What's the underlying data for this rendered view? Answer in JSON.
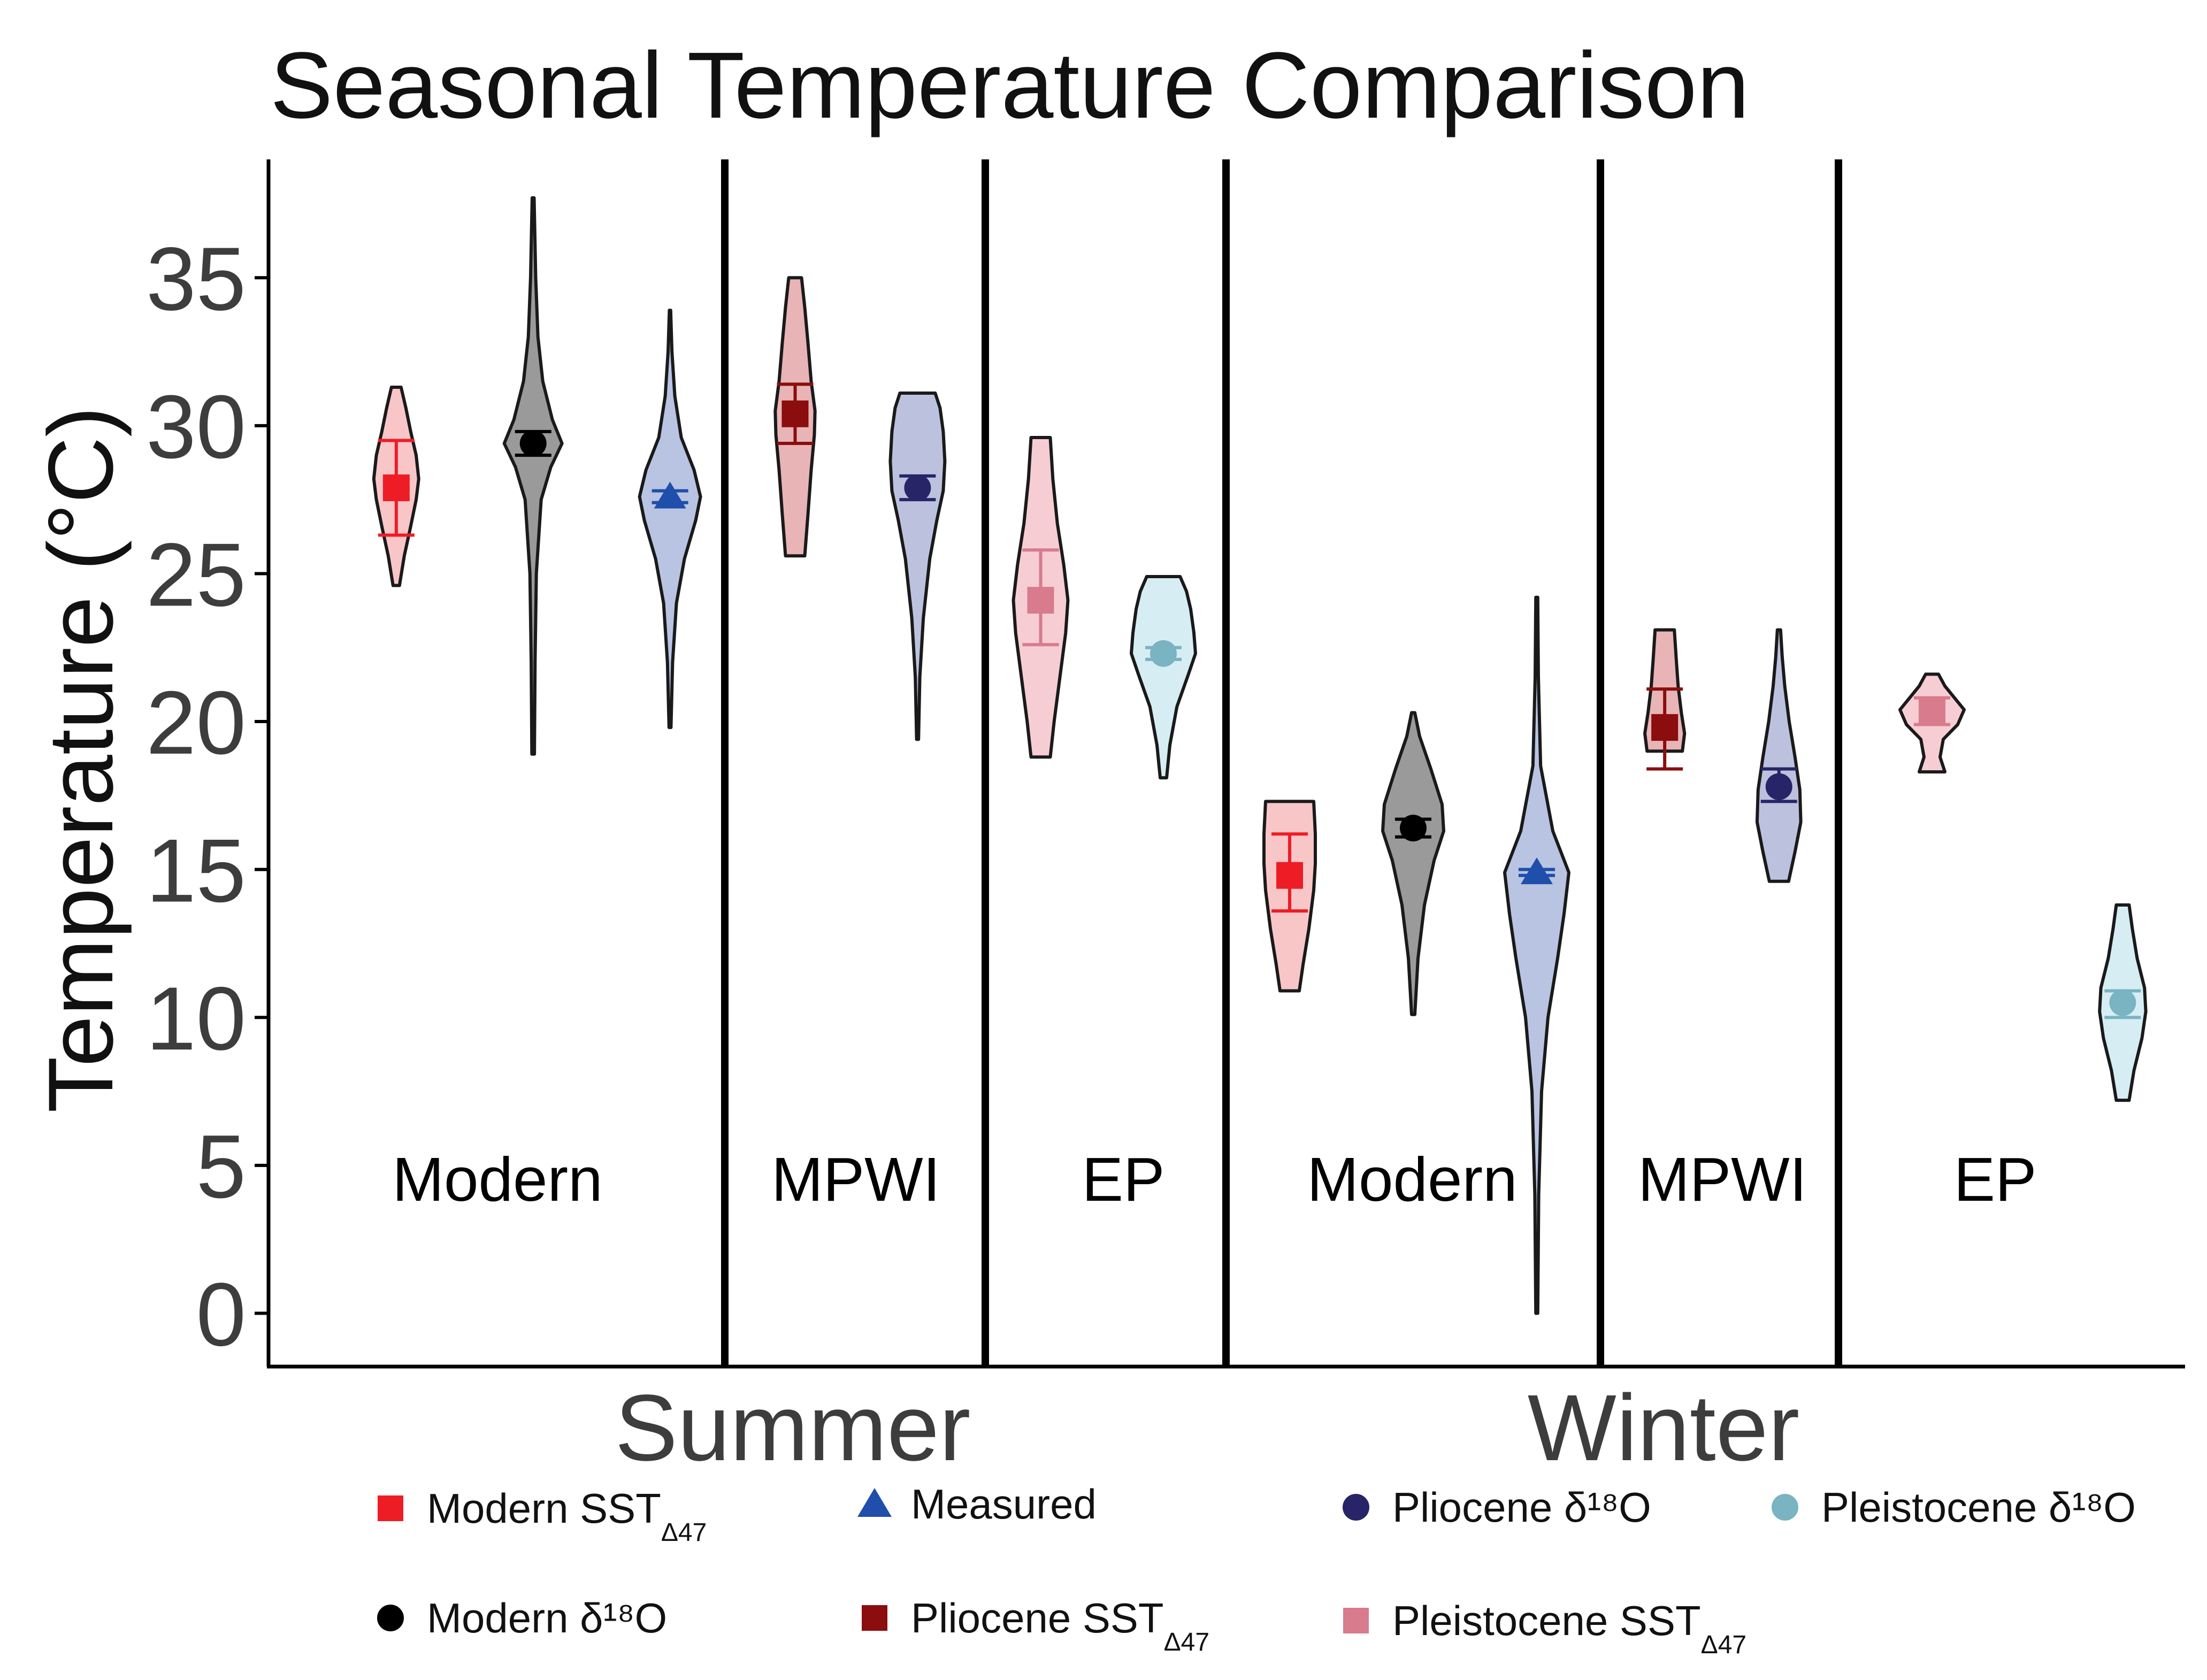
{
  "chart_data": {
    "type": "violin",
    "title": "Seasonal Temperature Comparison",
    "ylabel": "Temperature (°C)",
    "xlabel": "",
    "ylim": [
      -1.8,
      39
    ],
    "yticks": [
      0,
      5,
      10,
      15,
      20,
      25,
      30,
      35
    ],
    "grid": false,
    "legend_position": "bottom",
    "seasons": [
      {
        "name": "Summer",
        "groups": [
          "Modern",
          "MPWI",
          "EP"
        ]
      },
      {
        "name": "Winter",
        "groups": [
          "Modern",
          "MPWI",
          "EP"
        ]
      }
    ],
    "groups": [
      {
        "label": "Modern",
        "season": "Summer"
      },
      {
        "label": "MPWI",
        "season": "Summer"
      },
      {
        "label": "EP",
        "season": "Summer"
      },
      {
        "label": "Modern",
        "season": "Winter"
      },
      {
        "label": "MPWI",
        "season": "Winter"
      },
      {
        "label": "EP",
        "season": "Winter"
      }
    ],
    "series": [
      {
        "key": "modern_sst",
        "name": "Modern SST",
        "subscript": "Δ47",
        "marker": "square",
        "color": "#ee1c25",
        "fill": "#f9c6c8"
      },
      {
        "key": "measured",
        "name": "Measured",
        "marker": "triangle",
        "color": "#1f4eab",
        "fill": "#b8c4e2"
      },
      {
        "key": "pliocene_d18o",
        "name": "Pliocene δ¹⁸O",
        "marker": "circle",
        "color": "#272467",
        "fill": "#bcc2de"
      },
      {
        "key": "pleistocene_d18o",
        "name": "Pleistocene δ¹⁸O",
        "marker": "circle",
        "color": "#7ab3c2",
        "fill": "#d6eef3"
      },
      {
        "key": "modern_d18o",
        "name": "Modern δ¹⁸O",
        "marker": "circle",
        "color": "#000000",
        "fill": "#9a9a9a"
      },
      {
        "key": "pliocene_sst",
        "name": "Pliocene SST",
        "subscript": "Δ47",
        "marker": "square",
        "color": "#8b0d0d",
        "fill": "#e8b4b6"
      },
      {
        "key": "pleistocene_sst",
        "name": "Pleistocene SST",
        "subscript": "Δ47",
        "marker": "square",
        "color": "#d77b8d",
        "fill": "#f7cdd4"
      }
    ],
    "points": [
      {
        "group": 0,
        "series": "modern_sst",
        "x": 0.28,
        "min": 24.6,
        "max": 31.3,
        "mean": 27.9,
        "err_low": 26.3,
        "err_high": 29.5,
        "profile": [
          [
            24.6,
            0.1
          ],
          [
            25.6,
            0.25
          ],
          [
            26.6,
            0.45
          ],
          [
            27.5,
            0.62
          ],
          [
            28.2,
            0.7
          ],
          [
            29.0,
            0.62
          ],
          [
            29.8,
            0.45
          ],
          [
            30.6,
            0.3
          ],
          [
            31.3,
            0.15
          ]
        ]
      },
      {
        "group": 0,
        "series": "modern_d18o",
        "x": 0.58,
        "min": 18.9,
        "max": 37.7,
        "mean": 29.4,
        "err_low": 29.0,
        "err_high": 29.8,
        "profile": [
          [
            18.9,
            0.04
          ],
          [
            22.0,
            0.06
          ],
          [
            25.0,
            0.1
          ],
          [
            27.5,
            0.25
          ],
          [
            28.6,
            0.55
          ],
          [
            29.4,
            0.9
          ],
          [
            30.2,
            0.6
          ],
          [
            31.5,
            0.3
          ],
          [
            33.0,
            0.15
          ],
          [
            35.0,
            0.08
          ],
          [
            37.7,
            0.03
          ]
        ]
      },
      {
        "group": 0,
        "series": "measured",
        "x": 0.88,
        "min": 19.8,
        "max": 33.9,
        "mean": 27.6,
        "err_low": 27.4,
        "err_high": 27.8,
        "profile": [
          [
            19.8,
            0.03
          ],
          [
            22.0,
            0.08
          ],
          [
            24.0,
            0.2
          ],
          [
            25.5,
            0.45
          ],
          [
            26.8,
            0.8
          ],
          [
            27.6,
            0.95
          ],
          [
            28.5,
            0.75
          ],
          [
            29.6,
            0.35
          ],
          [
            31.0,
            0.15
          ],
          [
            32.5,
            0.06
          ],
          [
            33.9,
            0.02
          ]
        ]
      },
      {
        "group": 1,
        "series": "pliocene_sst",
        "x": 0.27,
        "min": 25.6,
        "max": 35.0,
        "mean": 30.4,
        "err_low": 29.4,
        "err_high": 31.4,
        "profile": [
          [
            25.6,
            0.3
          ],
          [
            27.0,
            0.4
          ],
          [
            28.5,
            0.5
          ],
          [
            29.7,
            0.6
          ],
          [
            30.5,
            0.62
          ],
          [
            31.5,
            0.5
          ],
          [
            32.8,
            0.4
          ],
          [
            34.0,
            0.3
          ],
          [
            35.0,
            0.2
          ]
        ]
      },
      {
        "group": 1,
        "series": "pliocene_d18o",
        "x": 0.74,
        "min": 19.4,
        "max": 31.1,
        "mean": 27.9,
        "err_low": 27.5,
        "err_high": 28.3,
        "profile": [
          [
            19.4,
            0.03
          ],
          [
            21.5,
            0.07
          ],
          [
            23.5,
            0.18
          ],
          [
            25.5,
            0.38
          ],
          [
            26.8,
            0.6
          ],
          [
            27.8,
            0.8
          ],
          [
            28.8,
            0.85
          ],
          [
            29.8,
            0.8
          ],
          [
            30.6,
            0.7
          ],
          [
            31.1,
            0.55
          ]
        ]
      },
      {
        "group": 2,
        "series": "pleistocene_sst",
        "x": 0.23,
        "min": 18.8,
        "max": 29.6,
        "mean": 24.1,
        "err_low": 22.6,
        "err_high": 25.8,
        "profile": [
          [
            18.8,
            0.3
          ],
          [
            20.0,
            0.42
          ],
          [
            21.5,
            0.6
          ],
          [
            23.0,
            0.78
          ],
          [
            24.1,
            0.85
          ],
          [
            25.3,
            0.72
          ],
          [
            26.7,
            0.52
          ],
          [
            28.2,
            0.38
          ],
          [
            29.6,
            0.3
          ]
        ]
      },
      {
        "group": 2,
        "series": "pleistocene_d18o",
        "x": 0.74,
        "min": 18.1,
        "max": 24.9,
        "mean": 22.3,
        "err_low": 22.1,
        "err_high": 22.5,
        "profile": [
          [
            18.1,
            0.1
          ],
          [
            19.2,
            0.2
          ],
          [
            20.5,
            0.42
          ],
          [
            21.6,
            0.78
          ],
          [
            22.3,
            1.0
          ],
          [
            23.0,
            0.95
          ],
          [
            23.8,
            0.85
          ],
          [
            24.4,
            0.72
          ],
          [
            24.9,
            0.52
          ]
        ]
      },
      {
        "group": 3,
        "series": "modern_sst",
        "x": 0.17,
        "min": 10.9,
        "max": 17.3,
        "mean": 14.8,
        "err_low": 13.6,
        "err_high": 16.2,
        "profile": [
          [
            10.9,
            0.3
          ],
          [
            11.8,
            0.42
          ],
          [
            13.0,
            0.6
          ],
          [
            14.3,
            0.75
          ],
          [
            15.2,
            0.8
          ],
          [
            16.2,
            0.8
          ],
          [
            17.3,
            0.75
          ]
        ]
      },
      {
        "group": 3,
        "series": "modern_d18o",
        "x": 0.5,
        "min": 10.1,
        "max": 20.3,
        "mean": 16.4,
        "err_low": 16.1,
        "err_high": 16.7,
        "profile": [
          [
            10.1,
            0.05
          ],
          [
            12.0,
            0.15
          ],
          [
            13.8,
            0.35
          ],
          [
            15.3,
            0.65
          ],
          [
            16.3,
            0.95
          ],
          [
            17.2,
            0.9
          ],
          [
            18.4,
            0.55
          ],
          [
            19.5,
            0.2
          ],
          [
            20.3,
            0.05
          ]
        ]
      },
      {
        "group": 3,
        "series": "measured",
        "x": 0.83,
        "min": 0.0,
        "max": 24.2,
        "mean": 14.9,
        "err_low": 14.8,
        "err_high": 15.0,
        "profile": [
          [
            0.0,
            0.03
          ],
          [
            4.0,
            0.06
          ],
          [
            7.5,
            0.15
          ],
          [
            10.0,
            0.35
          ],
          [
            12.0,
            0.65
          ],
          [
            13.5,
            0.85
          ],
          [
            14.9,
            1.0
          ],
          [
            16.3,
            0.5
          ],
          [
            18.5,
            0.12
          ],
          [
            21.5,
            0.05
          ],
          [
            24.2,
            0.03
          ]
        ]
      },
      {
        "group": 4,
        "series": "pliocene_sst",
        "x": 0.27,
        "min": 19.0,
        "max": 23.1,
        "mean": 19.8,
        "err_low": 18.4,
        "err_high": 21.1,
        "profile": [
          [
            19.0,
            0.55
          ],
          [
            19.6,
            0.62
          ],
          [
            20.3,
            0.52
          ],
          [
            21.2,
            0.42
          ],
          [
            22.1,
            0.36
          ],
          [
            23.1,
            0.3
          ]
        ]
      },
      {
        "group": 4,
        "series": "pliocene_d18o",
        "x": 0.75,
        "min": 14.6,
        "max": 23.1,
        "mean": 17.8,
        "err_low": 17.3,
        "err_high": 18.4,
        "profile": [
          [
            14.6,
            0.3
          ],
          [
            15.6,
            0.5
          ],
          [
            16.6,
            0.68
          ],
          [
            17.7,
            0.65
          ],
          [
            18.8,
            0.5
          ],
          [
            20.0,
            0.32
          ],
          [
            21.2,
            0.18
          ],
          [
            22.2,
            0.1
          ],
          [
            23.1,
            0.05
          ]
        ]
      },
      {
        "group": 5,
        "series": "pleistocene_sst",
        "x": 0.27,
        "min": 18.3,
        "max": 21.6,
        "mean": 20.4,
        "err_low": 19.9,
        "err_high": 20.8,
        "profile": [
          [
            18.3,
            0.4
          ],
          [
            18.8,
            0.25
          ],
          [
            19.4,
            0.35
          ],
          [
            19.9,
            0.8
          ],
          [
            20.4,
            1.0
          ],
          [
            20.8,
            0.7
          ],
          [
            21.2,
            0.4
          ],
          [
            21.6,
            0.2
          ]
        ]
      },
      {
        "group": 5,
        "series": "pleistocene_d18o",
        "x": 0.82,
        "min": 7.2,
        "max": 13.8,
        "mean": 10.5,
        "err_low": 10.0,
        "err_high": 10.9,
        "profile": [
          [
            7.2,
            0.2
          ],
          [
            8.2,
            0.35
          ],
          [
            9.3,
            0.6
          ],
          [
            10.2,
            0.72
          ],
          [
            11.0,
            0.68
          ],
          [
            12.0,
            0.45
          ],
          [
            13.0,
            0.3
          ],
          [
            13.8,
            0.2
          ]
        ]
      }
    ]
  }
}
